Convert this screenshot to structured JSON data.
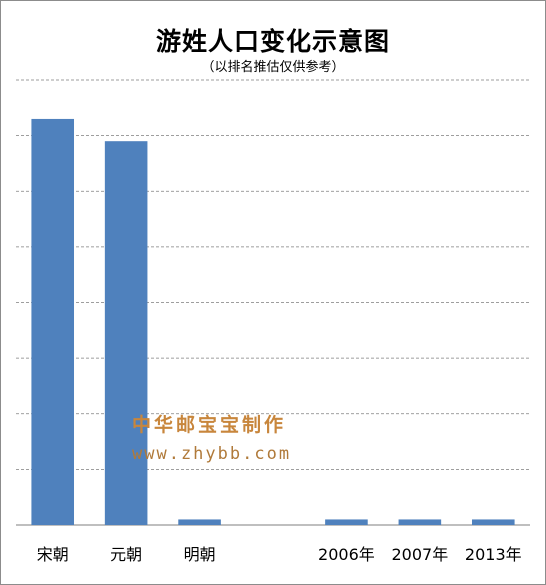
{
  "chart_data": {
    "type": "bar",
    "title": "游姓人口变化示意图",
    "subtitle": "（以排名推估仅供参考）",
    "categories": [
      "宋朝",
      "元朝",
      "明朝",
      "",
      "2006年",
      "2007年",
      "2013年"
    ],
    "values": [
      73,
      69,
      1,
      null,
      1,
      1,
      1
    ],
    "ylim": [
      0,
      80
    ],
    "grid": true,
    "grid_style": "dashed",
    "yaxis_labels": false,
    "colors": {
      "bar": "#4f81bd",
      "grid": "#7f7f7f",
      "axis": "#7f7f7f"
    }
  },
  "watermark": {
    "line1": "中华邮宝宝制作",
    "line2": "www.zhybb.com"
  }
}
